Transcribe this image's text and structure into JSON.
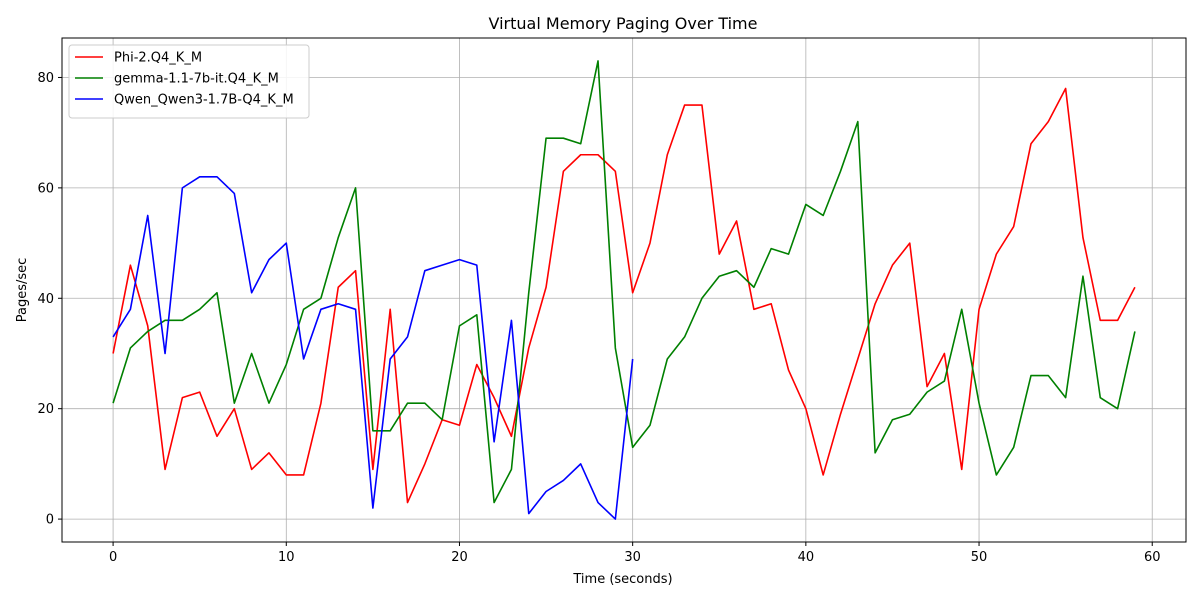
{
  "chart_data": {
    "type": "line",
    "title": "Virtual Memory Paging Over Time",
    "xlabel": "Time (seconds)",
    "ylabel": "Pages/sec",
    "xlim": [
      -2.95,
      61.95
    ],
    "ylim": [
      -4.15,
      87.15
    ],
    "xticks": [
      0,
      10,
      20,
      30,
      40,
      50,
      60
    ],
    "yticks": [
      0,
      20,
      40,
      60,
      80
    ],
    "grid": true,
    "legend_position": "top-left",
    "series": [
      {
        "name": "Phi-2.Q4_K_M",
        "color": "#ff0000",
        "x": [
          0,
          1,
          2,
          3,
          4,
          5,
          6,
          7,
          8,
          9,
          10,
          11,
          12,
          13,
          14,
          15,
          16,
          17,
          18,
          19,
          20,
          21,
          22,
          23,
          24,
          25,
          26,
          27,
          28,
          29,
          30,
          31,
          32,
          33,
          34,
          35,
          36,
          37,
          38,
          39,
          40,
          41,
          42,
          43,
          44,
          45,
          46,
          47,
          48,
          49,
          50,
          51,
          52,
          53,
          54,
          55,
          56,
          57,
          58,
          59
        ],
        "values": [
          30,
          46,
          35,
          9,
          22,
          23,
          15,
          20,
          9,
          12,
          8,
          8,
          21,
          42,
          45,
          9,
          38,
          3,
          10,
          18,
          17,
          28,
          22,
          15,
          31,
          42,
          63,
          66,
          66,
          63,
          41,
          50,
          66,
          75,
          75,
          48,
          54,
          38,
          39,
          27,
          20,
          8,
          19,
          29,
          39,
          46,
          50,
          24,
          30,
          9,
          38,
          48,
          53,
          68,
          72,
          78,
          51,
          36,
          36,
          42
        ]
      },
      {
        "name": "gemma-1.1-7b-it.Q4_K_M",
        "color": "#008000",
        "x": [
          0,
          1,
          2,
          3,
          4,
          5,
          6,
          7,
          8,
          9,
          10,
          11,
          12,
          13,
          14,
          15,
          16,
          17,
          18,
          19,
          20,
          21,
          22,
          23,
          24,
          25,
          26,
          27,
          28,
          29,
          30,
          31,
          32,
          33,
          34,
          35,
          36,
          37,
          38,
          39,
          40,
          41,
          42,
          43,
          44,
          45,
          46,
          47,
          48,
          49,
          50,
          51,
          52,
          53,
          54,
          55,
          56,
          57,
          58,
          59
        ],
        "values": [
          21,
          31,
          34,
          36,
          36,
          38,
          41,
          21,
          30,
          21,
          28,
          38,
          40,
          51,
          60,
          16,
          16,
          21,
          21,
          18,
          35,
          37,
          3,
          9,
          41,
          69,
          69,
          68,
          83,
          31,
          13,
          17,
          29,
          33,
          40,
          44,
          45,
          42,
          49,
          48,
          57,
          55,
          63,
          72,
          12,
          18,
          19,
          23,
          25,
          38,
          21,
          8,
          13,
          26,
          26,
          22,
          44,
          22,
          20,
          34
        ]
      },
      {
        "name": "Qwen_Qwen3-1.7B-Q4_K_M",
        "color": "#0000ff",
        "x": [
          0,
          1,
          2,
          3,
          4,
          5,
          6,
          7,
          8,
          9,
          10,
          11,
          12,
          13,
          14,
          15,
          16,
          17,
          18,
          19,
          20,
          21,
          22,
          23,
          24,
          25,
          26,
          27,
          28,
          29,
          30
        ],
        "values": [
          33,
          38,
          55,
          30,
          60,
          62,
          62,
          59,
          41,
          47,
          50,
          29,
          38,
          39,
          38,
          2,
          29,
          33,
          45,
          46,
          47,
          46,
          14,
          36,
          1,
          5,
          7,
          10,
          3,
          0,
          29
        ]
      }
    ]
  }
}
